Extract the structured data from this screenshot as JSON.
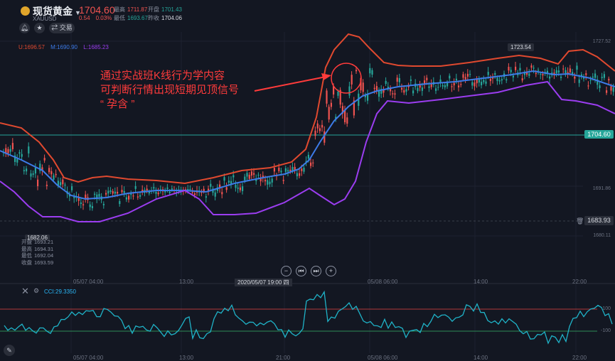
{
  "header": {
    "title": "现货黄金",
    "symbol": "XAUUSD",
    "price": "1704.60",
    "change": "0.54",
    "change_pct": "0.03%",
    "high_label": "最高",
    "high": "1711.87",
    "open_label": "开盘",
    "open": "1701.43",
    "low_label": "最低",
    "low": "1693.67",
    "prev_label": "昨收",
    "prev": "1704.06",
    "trade_label": "交易"
  },
  "bollinger": {
    "upper": "U:1696.57",
    "mid": "M:1690.90",
    "lower": "L:1685.23"
  },
  "annotation": {
    "line1": "通过实战班K线行为学内容",
    "line2": "可判断行情出现短期见顶信号",
    "line3": "“  孕含  ”"
  },
  "price_axis": {
    "top": "1727.52",
    "mid": "1691.86",
    "low": "1680.11"
  },
  "tags": {
    "current": "1704.60",
    "crosshair": "1683.93",
    "max": "1723.54",
    "min": "1682.06"
  },
  "side_panel": {
    "open_label": "开盘",
    "open": "1693.21",
    "high_label": "最高",
    "high": "1694.31",
    "low_label": "最低",
    "low": "1692.04",
    "close_label": "收盘",
    "close": "1693.59"
  },
  "x_axis": [
    "05/07 04:00",
    "13:00",
    "05/08 06:00",
    "14:00",
    "22:00"
  ],
  "x_axis_bottom": [
    "05/07 04:00",
    "13:00",
    "21:00",
    "05/08 06:00",
    "14:00",
    "22:00"
  ],
  "x_selected": "2020/05/07 19:00 四",
  "cci": {
    "label": "CCI:29.3350",
    "level_high": "100",
    "level_low": "-100"
  },
  "colors": {
    "up": "#ef5350",
    "down": "#26a69a",
    "bb_upper": "#e0492f",
    "bb_mid": "#3d7be8",
    "bb_lower": "#9b3df0",
    "cci": "#1fb3c8"
  },
  "icons": [
    "bell-icon",
    "star-icon",
    "swap-icon",
    "zoom-out-icon",
    "prev-icon",
    "next-icon",
    "zoom-in-icon",
    "close-icon",
    "settings-icon",
    "pen-icon"
  ]
}
